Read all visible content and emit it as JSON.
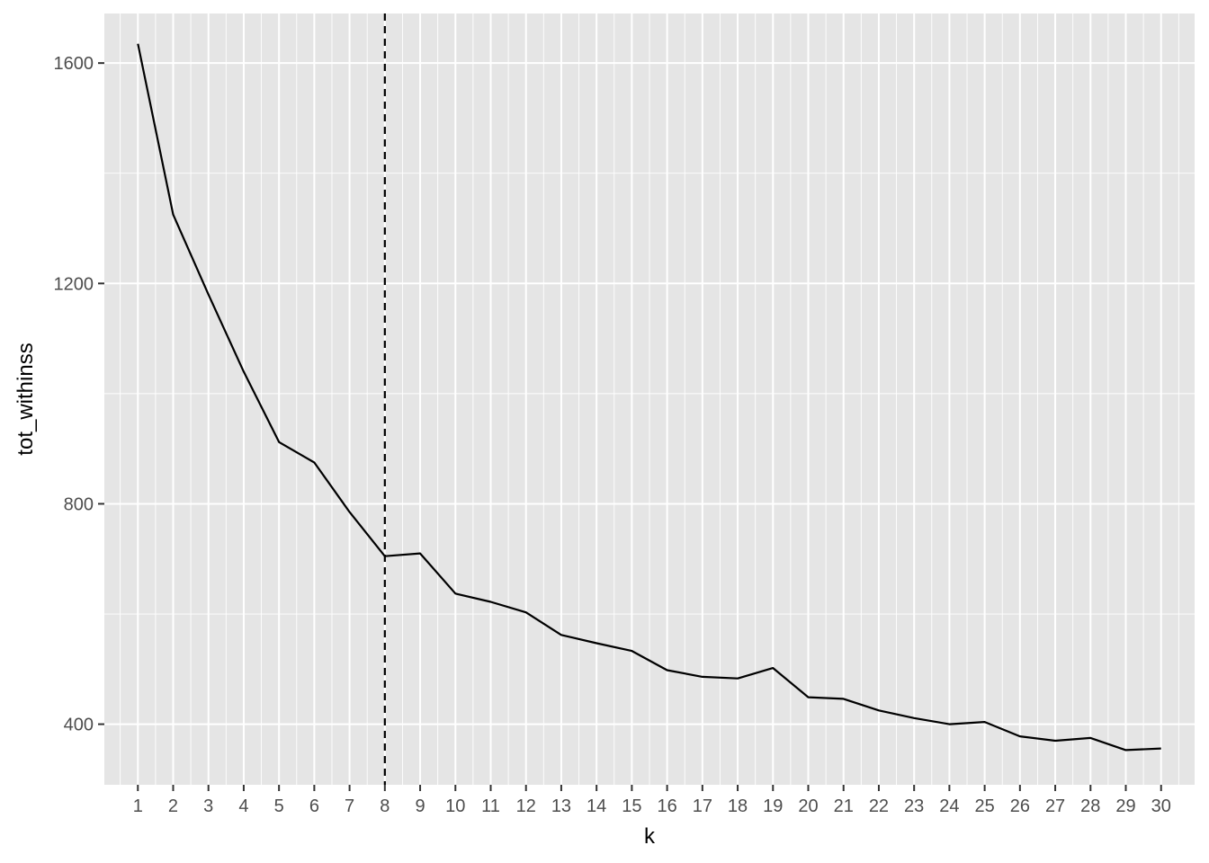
{
  "chart_data": {
    "type": "line",
    "title": "",
    "xlabel": "k",
    "ylabel": "tot_withinss",
    "x": [
      1,
      2,
      3,
      4,
      5,
      6,
      7,
      8,
      9,
      10,
      11,
      12,
      13,
      14,
      15,
      16,
      17,
      18,
      19,
      20,
      21,
      22,
      23,
      24,
      25,
      26,
      27,
      28,
      29,
      30
    ],
    "y": [
      1635,
      1325,
      1180,
      1040,
      912,
      875,
      785,
      705,
      710,
      637,
      622,
      603,
      562,
      547,
      533,
      498,
      486,
      483,
      502,
      449,
      446,
      425,
      411,
      400,
      404,
      378,
      370,
      375,
      353,
      356
    ],
    "xticks": [
      "1",
      "2",
      "3",
      "4",
      "5",
      "6",
      "7",
      "8",
      "9",
      "10",
      "11",
      "12",
      "13",
      "14",
      "15",
      "16",
      "17",
      "18",
      "19",
      "20",
      "21",
      "22",
      "23",
      "24",
      "25",
      "26",
      "27",
      "28",
      "29",
      "30"
    ],
    "yticks": [
      400,
      800,
      1200,
      1600
    ],
    "xlim": [
      0.05,
      30.95
    ],
    "ylim": [
      290,
      1690
    ],
    "vline_x": 8,
    "grid": true,
    "colors": {
      "panel": "#e5e5e5",
      "grid": "#ffffff",
      "line": "#000000",
      "tick_mark": "#333333"
    }
  }
}
